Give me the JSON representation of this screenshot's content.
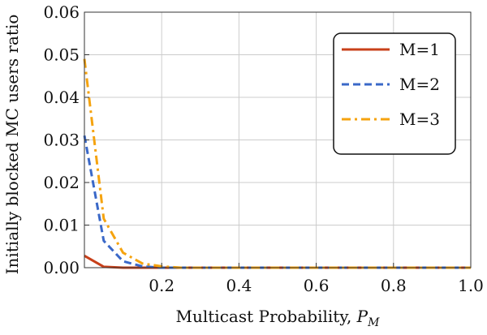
{
  "chart_data": {
    "type": "line",
    "xlabel": "Multicast  Probability, ",
    "xlabel_var": "P",
    "xlabel_sub": "M",
    "ylabel": "Initially blocked MC users ratio",
    "xlim": [
      0.0,
      1.0
    ],
    "ylim": [
      0.0,
      0.06
    ],
    "x_ticks": [
      0.2,
      0.4,
      0.6,
      0.8,
      1.0
    ],
    "x_tick_labels": [
      "0.2",
      "0.4",
      "0.6",
      "0.8",
      "1.0"
    ],
    "y_ticks": [
      0.0,
      0.01,
      0.02,
      0.03,
      0.04,
      0.05,
      0.06
    ],
    "y_tick_labels": [
      "0.00",
      "0.01",
      "0.02",
      "0.03",
      "0.04",
      "0.05",
      "0.06"
    ],
    "grid": true,
    "legend_position": "top-right",
    "series": [
      {
        "name": "M=1",
        "color": "#c8401a",
        "dash": "solid",
        "x": [
          0.0,
          0.05,
          0.1,
          0.15,
          0.2,
          0.25,
          0.3,
          0.35,
          0.4,
          0.45,
          0.5,
          0.55,
          0.6,
          0.65,
          0.7,
          0.75,
          0.8,
          0.85,
          0.9,
          0.95,
          1.0
        ],
        "y": [
          0.0028,
          0.0002,
          0.0,
          0.0,
          0.0,
          0.0,
          0.0,
          0.0,
          0.0,
          0.0,
          0.0,
          0.0,
          0.0,
          0.0,
          0.0,
          0.0,
          0.0,
          0.0,
          0.0,
          0.0,
          0.0
        ]
      },
      {
        "name": "M=2",
        "color": "#3a68c8",
        "dash": "dashed",
        "x": [
          0.0,
          0.05,
          0.1,
          0.15,
          0.2,
          0.25,
          0.3,
          0.35,
          0.4,
          0.45,
          0.5,
          0.55,
          0.6,
          0.65,
          0.7,
          0.75,
          0.8,
          0.85,
          0.9,
          0.95,
          1.0
        ],
        "y": [
          0.031,
          0.0063,
          0.0015,
          0.0003,
          0.0,
          0.0,
          0.0,
          0.0,
          0.0,
          0.0,
          0.0,
          0.0,
          0.0,
          0.0,
          0.0,
          0.0,
          0.0,
          0.0,
          0.0,
          0.0,
          0.0
        ]
      },
      {
        "name": "M=3",
        "color": "#f5a30f",
        "dash": "dashdot",
        "x": [
          0.0,
          0.05,
          0.1,
          0.15,
          0.2,
          0.25,
          0.3,
          0.35,
          0.4,
          0.45,
          0.5,
          0.55,
          0.6,
          0.65,
          0.7,
          0.75,
          0.8,
          0.85,
          0.9,
          0.95,
          1.0
        ],
        "y": [
          0.049,
          0.0115,
          0.0035,
          0.001,
          0.0003,
          0.0,
          0.0,
          0.0,
          0.0,
          0.0,
          0.0,
          0.0,
          0.0,
          0.0,
          0.0,
          0.0,
          0.0,
          0.0,
          0.0,
          0.0,
          0.0
        ]
      }
    ]
  }
}
